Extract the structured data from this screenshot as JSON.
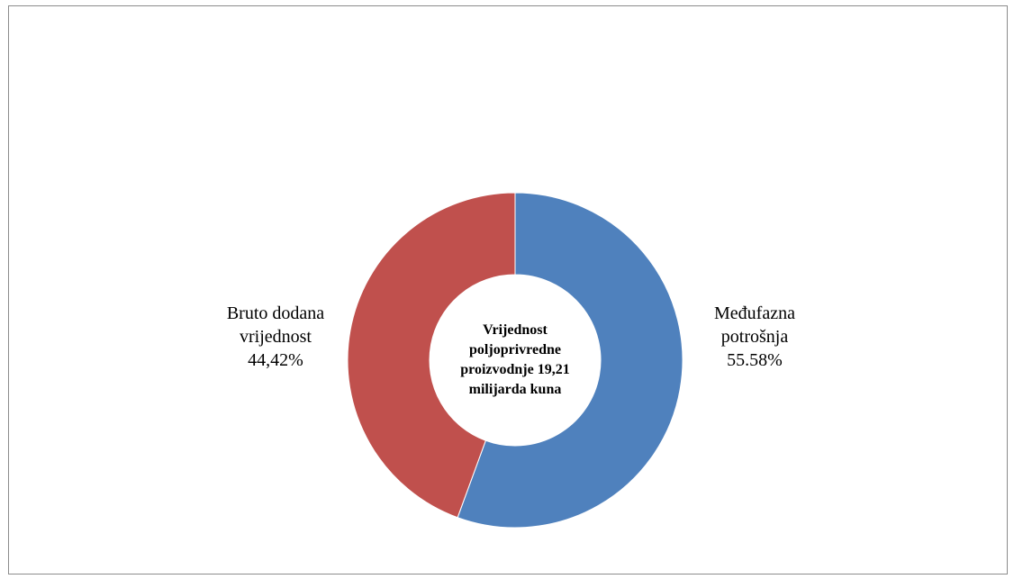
{
  "chart_data": {
    "type": "donut",
    "categories": [
      "Međufazna potrošnja",
      "Bruto dodana vrijednost"
    ],
    "values": [
      55.58,
      44.42
    ],
    "value_labels": [
      "55.58%",
      "44,42%"
    ],
    "colors": [
      "#4f81bd",
      "#c0504d"
    ],
    "center_text": "Vrijednost poljoprivredne proizvodnje 19,21 milijarda kuna"
  }
}
